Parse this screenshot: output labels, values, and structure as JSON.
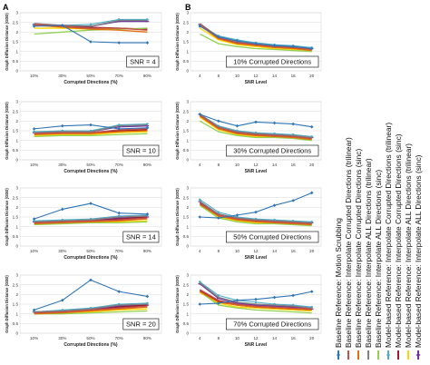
{
  "figure": {
    "panel_labels": [
      "A",
      "B"
    ]
  },
  "legend": {
    "entries": [
      {
        "label": "Baseline Reference: Motion Scrubbing",
        "color": "#2e75b6"
      },
      {
        "label": "Baseline Reference: Interpolate Corrupted Directions (trilinear)",
        "color": "#c0504d"
      },
      {
        "label": "Baseline Reference: Interpolate Corrupted Directions (sinc)",
        "color": "#e46c0a"
      },
      {
        "label": "Baseline Reference: Interpolate ALL Directions (trilinear)",
        "color": "#7f7f7f"
      },
      {
        "label": "Baseline Reference: Interpolate ALL Directions (sinc)",
        "color": "#92d050"
      },
      {
        "label": "Model-based Reference: Interpolate Corrupted Directions (trilinear)",
        "color": "#4bacc6"
      },
      {
        "label": "Model-based Reference: Interpolate Corrupted Directions (sinc)",
        "color": "#9b1b30"
      },
      {
        "label": "Model-based Reference: Interpolate ALL Directions (trilinear)",
        "color": "#ffd700"
      },
      {
        "label": "Model-based Reference: Interpolate ALL Directions (sinc)",
        "color": "#7030a0"
      }
    ]
  },
  "chart_data": [
    {
      "type": "line",
      "panel": "A",
      "box_label": "SNR = 4",
      "x": [
        "10%",
        "30%",
        "50%",
        "70%",
        "90%"
      ],
      "xlabel": "Corrupted Directions (%)",
      "ylabel": "Graph Diffusion Distance (GDD)",
      "ylim": [
        0,
        3
      ],
      "yticks": [
        0,
        0.5,
        1,
        1.5,
        2,
        2.5,
        3
      ],
      "grid": true,
      "series": [
        {
          "values": [
            2.3,
            2.35,
            1.5,
            1.45,
            1.45
          ]
        },
        {
          "values": [
            2.4,
            2.3,
            2.2,
            2.2,
            2.1
          ]
        },
        {
          "values": [
            2.35,
            2.25,
            2.15,
            2.1,
            2.0
          ]
        },
        {
          "values": [
            2.45,
            2.35,
            2.3,
            2.6,
            2.6
          ]
        },
        {
          "values": [
            1.9,
            2.0,
            2.1,
            2.15,
            2.2
          ]
        },
        {
          "values": [
            2.35,
            2.35,
            2.4,
            2.65,
            2.65
          ]
        },
        {
          "values": [
            2.35,
            2.3,
            2.25,
            2.2,
            2.15
          ]
        },
        {
          "values": [
            2.2,
            2.2,
            2.15,
            2.2,
            2.15
          ]
        },
        {
          "values": [
            2.4,
            2.35,
            2.3,
            2.55,
            2.55
          ]
        }
      ]
    },
    {
      "type": "line",
      "panel": "A",
      "box_label": "SNR = 10",
      "x": [
        "10%",
        "30%",
        "50%",
        "70%",
        "90%"
      ],
      "xlabel": "Corrupted Directions (%)",
      "ylabel": "Graph Diffusion Distance (GDD)",
      "ylim": [
        0,
        3
      ],
      "yticks": [
        0,
        0.5,
        1,
        1.5,
        2,
        2.5,
        3
      ],
      "grid": true,
      "series": [
        {
          "values": [
            1.6,
            1.75,
            1.8,
            1.6,
            1.65
          ]
        },
        {
          "values": [
            1.35,
            1.4,
            1.4,
            1.55,
            1.6
          ]
        },
        {
          "values": [
            1.3,
            1.35,
            1.35,
            1.45,
            1.5
          ]
        },
        {
          "values": [
            1.4,
            1.45,
            1.45,
            1.75,
            1.8
          ]
        },
        {
          "values": [
            1.2,
            1.25,
            1.25,
            1.3,
            1.35
          ]
        },
        {
          "values": [
            1.45,
            1.5,
            1.5,
            1.8,
            1.85
          ]
        },
        {
          "values": [
            1.35,
            1.4,
            1.4,
            1.5,
            1.55
          ]
        },
        {
          "values": [
            1.25,
            1.3,
            1.3,
            1.4,
            1.45
          ]
        },
        {
          "values": [
            1.4,
            1.45,
            1.45,
            1.7,
            1.75
          ]
        }
      ]
    },
    {
      "type": "line",
      "panel": "A",
      "box_label": "SNR = 14",
      "x": [
        "10%",
        "30%",
        "50%",
        "70%",
        "90%"
      ],
      "xlabel": "Corrupted Directions (%)",
      "ylabel": "Graph Diffusion Distance (GDD)",
      "ylim": [
        0,
        3
      ],
      "yticks": [
        0,
        0.5,
        1,
        1.5,
        2,
        2.5,
        3
      ],
      "grid": true,
      "series": [
        {
          "values": [
            1.4,
            1.9,
            2.2,
            1.7,
            1.65
          ]
        },
        {
          "values": [
            1.2,
            1.25,
            1.3,
            1.35,
            1.45
          ]
        },
        {
          "values": [
            1.15,
            1.2,
            1.25,
            1.3,
            1.4
          ]
        },
        {
          "values": [
            1.25,
            1.3,
            1.35,
            1.5,
            1.55
          ]
        },
        {
          "values": [
            1.1,
            1.15,
            1.2,
            1.2,
            1.25
          ]
        },
        {
          "values": [
            1.3,
            1.35,
            1.4,
            1.55,
            1.6
          ]
        },
        {
          "values": [
            1.2,
            1.25,
            1.3,
            1.4,
            1.5
          ]
        },
        {
          "values": [
            1.15,
            1.2,
            1.2,
            1.25,
            1.3
          ]
        },
        {
          "values": [
            1.25,
            1.3,
            1.3,
            1.45,
            1.5
          ]
        }
      ]
    },
    {
      "type": "line",
      "panel": "A",
      "box_label": "SNR = 20",
      "x": [
        "10%",
        "30%",
        "50%",
        "70%",
        "90%"
      ],
      "xlabel": "Corrupted Directions (%)",
      "ylabel": "Graph Diffusion Distance (GDD)",
      "ylim": [
        0,
        3
      ],
      "yticks": [
        0,
        0.5,
        1,
        1.5,
        2,
        2.5,
        3
      ],
      "grid": true,
      "series": [
        {
          "values": [
            1.2,
            1.7,
            2.75,
            2.15,
            1.9
          ]
        },
        {
          "values": [
            1.05,
            1.1,
            1.2,
            1.3,
            1.4
          ]
        },
        {
          "values": [
            1.0,
            1.05,
            1.15,
            1.25,
            1.35
          ]
        },
        {
          "values": [
            1.1,
            1.15,
            1.25,
            1.45,
            1.5
          ]
        },
        {
          "values": [
            1.0,
            1.0,
            1.05,
            1.1,
            1.15
          ]
        },
        {
          "values": [
            1.1,
            1.2,
            1.3,
            1.5,
            1.55
          ]
        },
        {
          "values": [
            1.05,
            1.1,
            1.2,
            1.35,
            1.45
          ]
        },
        {
          "values": [
            1.0,
            1.05,
            1.1,
            1.2,
            1.25
          ]
        },
        {
          "values": [
            1.1,
            1.15,
            1.25,
            1.4,
            1.45
          ]
        }
      ]
    },
    {
      "type": "line",
      "panel": "B",
      "box_label": "10% Corrupted Directions",
      "x": [
        "4",
        "8",
        "10",
        "12",
        "14",
        "16",
        "20"
      ],
      "xlabel": "SNR Level",
      "ylabel": "Graph Diffusion Distance (GDD)",
      "ylim": [
        0,
        3
      ],
      "yticks": [
        0,
        0.5,
        1,
        1.5,
        2,
        2.5,
        3
      ],
      "grid": true,
      "series": [
        {
          "values": [
            2.3,
            1.75,
            1.55,
            1.4,
            1.3,
            1.25,
            1.15
          ]
        },
        {
          "values": [
            2.4,
            1.7,
            1.45,
            1.35,
            1.25,
            1.2,
            1.1
          ]
        },
        {
          "values": [
            2.35,
            1.65,
            1.4,
            1.3,
            1.2,
            1.15,
            1.05
          ]
        },
        {
          "values": [
            2.45,
            1.75,
            1.5,
            1.4,
            1.3,
            1.25,
            1.15
          ]
        },
        {
          "values": [
            1.9,
            1.4,
            1.25,
            1.15,
            1.1,
            1.05,
            1.0
          ]
        },
        {
          "values": [
            2.35,
            1.8,
            1.6,
            1.45,
            1.35,
            1.3,
            1.2
          ]
        },
        {
          "values": [
            2.35,
            1.7,
            1.45,
            1.35,
            1.25,
            1.2,
            1.1
          ]
        },
        {
          "values": [
            2.2,
            1.6,
            1.35,
            1.25,
            1.15,
            1.1,
            1.05
          ]
        },
        {
          "values": [
            2.4,
            1.75,
            1.5,
            1.4,
            1.3,
            1.25,
            1.15
          ]
        }
      ]
    },
    {
      "type": "line",
      "panel": "B",
      "box_label": "30% Corrupted Directions",
      "x": [
        "4",
        "8",
        "10",
        "12",
        "14",
        "16",
        "20"
      ],
      "xlabel": "SNR Level",
      "ylabel": "Graph Diffusion Distance (GDD)",
      "ylim": [
        0,
        3
      ],
      "yticks": [
        0,
        0.5,
        1,
        1.5,
        2,
        2.5,
        3
      ],
      "grid": true,
      "series": [
        {
          "values": [
            2.35,
            2.0,
            1.75,
            1.95,
            1.9,
            1.85,
            1.7
          ]
        },
        {
          "values": [
            2.3,
            1.65,
            1.4,
            1.3,
            1.25,
            1.2,
            1.1
          ]
        },
        {
          "values": [
            2.25,
            1.6,
            1.35,
            1.25,
            1.2,
            1.15,
            1.05
          ]
        },
        {
          "values": [
            2.35,
            1.7,
            1.45,
            1.35,
            1.3,
            1.25,
            1.15
          ]
        },
        {
          "values": [
            2.0,
            1.45,
            1.25,
            1.15,
            1.15,
            1.1,
            1.0
          ]
        },
        {
          "values": [
            2.35,
            1.75,
            1.5,
            1.4,
            1.35,
            1.3,
            1.2
          ]
        },
        {
          "values": [
            2.3,
            1.65,
            1.4,
            1.3,
            1.25,
            1.2,
            1.1
          ]
        },
        {
          "values": [
            2.2,
            1.55,
            1.3,
            1.2,
            1.2,
            1.15,
            1.05
          ]
        },
        {
          "values": [
            2.35,
            1.7,
            1.45,
            1.35,
            1.3,
            1.25,
            1.15
          ]
        }
      ]
    },
    {
      "type": "line",
      "panel": "B",
      "box_label": "50% Corrupted Directions",
      "x": [
        "4",
        "8",
        "10",
        "12",
        "14",
        "16",
        "20"
      ],
      "xlabel": "SNR Level",
      "ylabel": "Graph Diffusion Distance (GDD)",
      "ylim": [
        0,
        3
      ],
      "yticks": [
        0,
        0.5,
        1,
        1.5,
        2,
        2.5,
        3
      ],
      "grid": true,
      "series": [
        {
          "values": [
            1.5,
            1.45,
            1.6,
            1.75,
            2.1,
            2.35,
            2.75
          ]
        },
        {
          "values": [
            2.2,
            1.6,
            1.4,
            1.3,
            1.25,
            1.2,
            1.15
          ]
        },
        {
          "values": [
            2.15,
            1.55,
            1.35,
            1.25,
            1.2,
            1.15,
            1.1
          ]
        },
        {
          "values": [
            2.3,
            1.65,
            1.45,
            1.35,
            1.3,
            1.25,
            1.2
          ]
        },
        {
          "values": [
            2.1,
            1.45,
            1.25,
            1.15,
            1.15,
            1.1,
            1.05
          ]
        },
        {
          "values": [
            2.4,
            1.75,
            1.5,
            1.4,
            1.35,
            1.3,
            1.25
          ]
        },
        {
          "values": [
            2.25,
            1.6,
            1.4,
            1.3,
            1.25,
            1.2,
            1.15
          ]
        },
        {
          "values": [
            2.15,
            1.5,
            1.3,
            1.2,
            1.2,
            1.15,
            1.1
          ]
        },
        {
          "values": [
            2.3,
            1.65,
            1.45,
            1.35,
            1.3,
            1.25,
            1.2
          ]
        }
      ]
    },
    {
      "type": "line",
      "panel": "B",
      "box_label": "70% Corrupted Directions",
      "x": [
        "4",
        "8",
        "10",
        "12",
        "14",
        "16",
        "20"
      ],
      "xlabel": "SNR Level",
      "ylabel": "Graph Diffusion Distance (GDD)",
      "ylim": [
        0,
        3
      ],
      "yticks": [
        0,
        0.5,
        1,
        1.5,
        2,
        2.5,
        3
      ],
      "grid": true,
      "series": [
        {
          "values": [
            1.5,
            1.55,
            1.7,
            1.75,
            1.85,
            1.95,
            2.15
          ]
        },
        {
          "values": [
            2.25,
            1.7,
            1.5,
            1.4,
            1.35,
            1.3,
            1.25
          ]
        },
        {
          "values": [
            2.15,
            1.6,
            1.45,
            1.35,
            1.3,
            1.25,
            1.2
          ]
        },
        {
          "values": [
            2.6,
            1.85,
            1.6,
            1.5,
            1.45,
            1.4,
            1.3
          ]
        },
        {
          "values": [
            2.15,
            1.45,
            1.3,
            1.2,
            1.15,
            1.1,
            1.05
          ]
        },
        {
          "values": [
            2.65,
            1.95,
            1.7,
            1.6,
            1.5,
            1.45,
            1.35
          ]
        },
        {
          "values": [
            2.2,
            1.65,
            1.45,
            1.35,
            1.3,
            1.25,
            1.2
          ]
        },
        {
          "values": [
            2.1,
            1.55,
            1.35,
            1.3,
            1.25,
            1.2,
            1.15
          ]
        },
        {
          "values": [
            2.55,
            1.8,
            1.55,
            1.45,
            1.4,
            1.35,
            1.25
          ]
        }
      ]
    }
  ]
}
